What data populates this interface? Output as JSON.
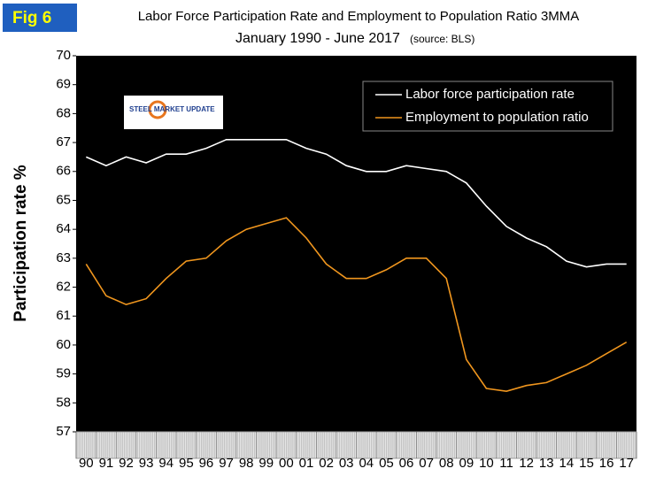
{
  "chart_data": {
    "type": "line",
    "figure_label": "Fig 6",
    "title": "Labor Force Participation Rate and Employment to Population Ratio 3MMA",
    "subtitle": "January 1990 - June 2017",
    "source": "(source: BLS)",
    "logo": "STEEL MARKET UPDATE",
    "y_label": "Participation rate %",
    "categories": [
      "90",
      "91",
      "92",
      "93",
      "94",
      "95",
      "96",
      "97",
      "98",
      "99",
      "00",
      "01",
      "02",
      "03",
      "04",
      "05",
      "06",
      "07",
      "08",
      "09",
      "10",
      "11",
      "12",
      "13",
      "14",
      "15",
      "16",
      "17"
    ],
    "series": [
      {
        "name": "Labor force participation rate",
        "color": "#ffffff",
        "values": [
          66.5,
          66.2,
          66.5,
          66.3,
          66.6,
          66.6,
          66.8,
          67.1,
          67.1,
          67.1,
          67.1,
          66.8,
          66.6,
          66.2,
          66.0,
          66.0,
          66.2,
          66.1,
          66.0,
          65.6,
          64.8,
          64.1,
          63.7,
          63.4,
          62.9,
          62.7,
          62.8,
          62.8
        ]
      },
      {
        "name": "Employment to population ratio",
        "color": "#f0961e",
        "values": [
          62.8,
          61.7,
          61.4,
          61.6,
          62.3,
          62.9,
          63.0,
          63.6,
          64.0,
          64.2,
          64.4,
          63.7,
          62.8,
          62.3,
          62.3,
          62.6,
          63.0,
          63.0,
          62.3,
          59.5,
          58.5,
          58.4,
          58.6,
          58.7,
          59.0,
          59.3,
          59.7,
          60.1
        ]
      }
    ],
    "ylim": [
      57,
      70
    ],
    "yticks": [
      57,
      58,
      59,
      60,
      61,
      62,
      63,
      64,
      65,
      66,
      67,
      68,
      69,
      70
    ],
    "grid": false,
    "legend_position": "upper-right"
  }
}
